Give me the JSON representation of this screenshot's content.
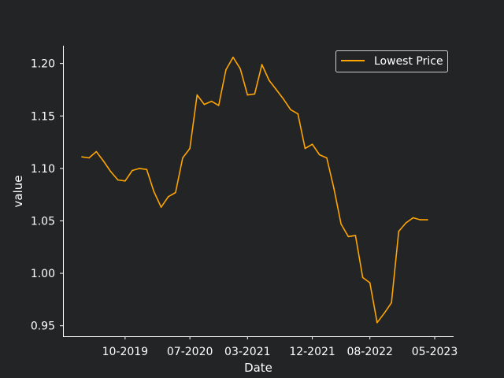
{
  "chart_data": {
    "type": "line",
    "xlabel": "Date",
    "ylabel": "value",
    "x_tick_labels": [
      "10-2019",
      "07-2020",
      "03-2021",
      "12-2021",
      "08-2022",
      "05-2023"
    ],
    "y_tick_labels": [
      "0.95",
      "1.00",
      "1.05",
      "1.10",
      "1.15",
      "1.20"
    ],
    "x_ticks": [
      "2019-10",
      "2020-07",
      "2021-03",
      "2021-12",
      "2022-08",
      "2023-05"
    ],
    "y_ticks": [
      0.95,
      1.0,
      1.05,
      1.1,
      1.15,
      1.2
    ],
    "xlim": [
      "2019-04",
      "2023-05"
    ],
    "ylim": [
      0.94,
      1.217
    ],
    "grid": false,
    "legend_position": "top-right",
    "series": [
      {
        "name": "Lowest Price",
        "color": "#ffa500",
        "x": [
          "2019-04",
          "2019-05",
          "2019-06",
          "2019-07",
          "2019-08",
          "2019-09",
          "2019-10",
          "2019-11",
          "2019-12",
          "2020-01",
          "2020-02",
          "2020-03",
          "2020-04",
          "2020-05",
          "2020-06",
          "2020-07",
          "2020-08",
          "2020-09",
          "2020-10",
          "2020-11",
          "2020-12",
          "2021-01",
          "2021-02",
          "2021-03",
          "2021-04",
          "2021-05",
          "2021-06",
          "2021-07",
          "2021-08",
          "2021-09",
          "2021-10",
          "2021-11",
          "2021-12",
          "2022-01",
          "2022-02",
          "2022-03",
          "2022-04",
          "2022-05",
          "2022-06",
          "2022-07",
          "2022-08",
          "2022-09",
          "2022-10",
          "2022-11",
          "2022-12",
          "2023-01",
          "2023-02",
          "2023-03",
          "2023-04"
        ],
        "values": [
          1.111,
          1.11,
          1.116,
          1.107,
          1.097,
          1.089,
          1.088,
          1.098,
          1.1,
          1.099,
          1.078,
          1.063,
          1.073,
          1.077,
          1.11,
          1.119,
          1.17,
          1.161,
          1.164,
          1.16,
          1.194,
          1.206,
          1.195,
          1.17,
          1.171,
          1.199,
          1.184,
          1.175,
          1.166,
          1.156,
          1.152,
          1.119,
          1.123,
          1.113,
          1.11,
          1.081,
          1.047,
          1.035,
          1.036,
          0.996,
          0.991,
          0.953,
          0.962,
          0.972,
          1.04,
          1.048,
          1.053,
          1.051,
          1.051
        ]
      }
    ]
  }
}
